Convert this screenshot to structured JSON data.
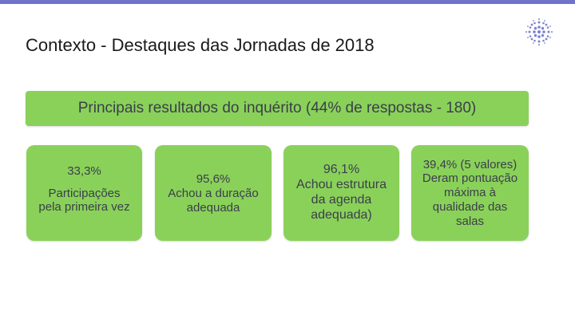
{
  "slide": {
    "title": "Contexto - Destaques das Jornadas de 2018",
    "accent_color": "#6e73c8",
    "logo_icon": "dotted-globe-logo"
  },
  "banner": {
    "text": "Principais resultados do inquérito (44% de respostas - 180)",
    "color": "#8ad15a"
  },
  "cards": [
    {
      "value": "33,3%",
      "lines": [
        "Participações",
        "pela primeira vez"
      ]
    },
    {
      "value": "95,6%",
      "lines": [
        "Achou a duração",
        "adequada"
      ]
    },
    {
      "value": "96,1%",
      "lines": [
        "Achou estrutura",
        "da agenda",
        "adequada)"
      ]
    },
    {
      "value": "39,4% (5 valores)",
      "lines": [
        "Deram pontuação",
        "máxima à",
        "qualidade das",
        "salas"
      ]
    }
  ]
}
